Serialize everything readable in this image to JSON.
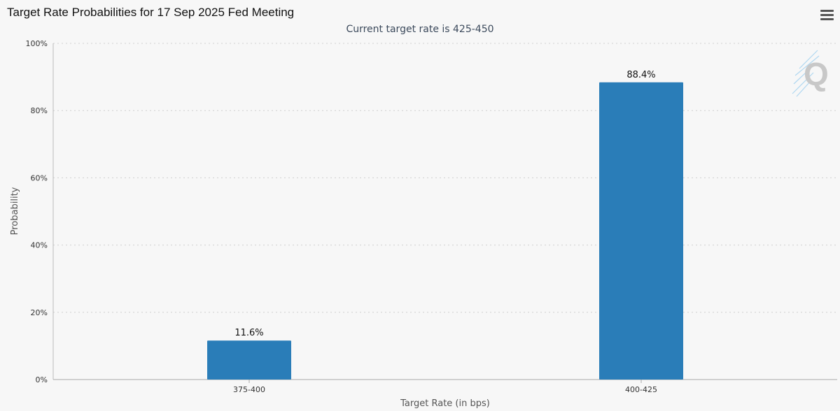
{
  "title": "Target Rate Probabilities for 17 Sep 2025 Fed Meeting",
  "subtitle": "Current target rate is 425-450",
  "colors": {
    "bar": "#2a7db8",
    "background": "#f7f7f7",
    "grid": "#cfcfcf"
  },
  "icons": {
    "menu": "hamburger-menu-icon",
    "logo": "q-logo-icon"
  },
  "chart_data": {
    "type": "bar",
    "categories": [
      "375-400",
      "400-425"
    ],
    "values": [
      11.6,
      88.4
    ],
    "value_labels": [
      "11.6%",
      "88.4%"
    ],
    "xlabel": "Target Rate (in bps)",
    "ylabel": "Probability",
    "ylim": [
      0,
      100
    ],
    "yticks": [
      0,
      20,
      40,
      60,
      80,
      100
    ],
    "ytick_labels": [
      "0%",
      "20%",
      "40%",
      "60%",
      "80%",
      "100%"
    ],
    "grid": true,
    "legend": "none"
  }
}
